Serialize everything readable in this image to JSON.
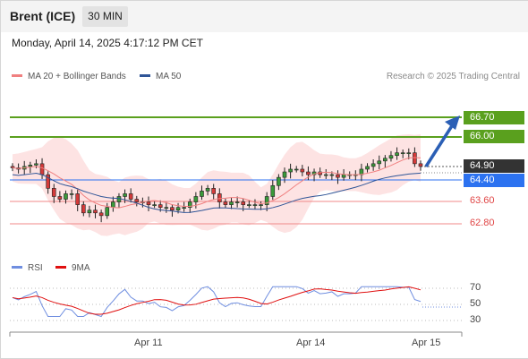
{
  "header": {
    "instrument": "Brent (ICE)",
    "timeframe": "30 MIN"
  },
  "datetime": "Monday, April 14, 2025 4:17:12 PM CET",
  "legend": {
    "items": [
      {
        "label": "MA 20 + Bollinger Bands",
        "color": "#f08080"
      },
      {
        "label": "MA 50",
        "color": "#2f5597"
      }
    ],
    "credit": "Research © 2025 Trading Central"
  },
  "levels": {
    "resistance_2": {
      "label": "66.70",
      "color": "#5aa01e"
    },
    "resistance_1": {
      "label": "66.00",
      "color": "#5aa01e"
    },
    "last_price": {
      "label": "64.90",
      "color": "#333333"
    },
    "pivot": {
      "label": "64.40",
      "color": "#2c72f0"
    },
    "support_1": {
      "label": "63.60",
      "color": "#e04545"
    },
    "support_2": {
      "label": "62.80",
      "color": "#e04545"
    }
  },
  "rsi_legend": {
    "items": [
      {
        "label": "RSI",
        "color": "#6f8ee0"
      },
      {
        "label": "9MA",
        "color": "#e01010"
      }
    ]
  },
  "rsi_levels": [
    "70",
    "50",
    "30"
  ],
  "x_axis": [
    "Apr 11",
    "Apr 14",
    "Apr 15"
  ],
  "chart_data": {
    "type": "candlestick",
    "price_series_close": [
      64.85,
      64.8,
      64.9,
      64.95,
      65.0,
      64.6,
      64.1,
      63.8,
      63.7,
      63.9,
      63.9,
      63.5,
      63.2,
      63.3,
      63.2,
      63.1,
      63.4,
      63.6,
      63.8,
      63.9,
      63.7,
      63.6,
      63.6,
      63.5,
      63.5,
      63.4,
      63.4,
      63.3,
      63.4,
      63.4,
      63.6,
      63.8,
      64.0,
      64.1,
      63.9,
      63.6,
      63.5,
      63.6,
      63.6,
      63.5,
      63.5,
      63.5,
      63.5,
      63.8,
      64.2,
      64.5,
      64.7,
      64.8,
      64.8,
      64.7,
      64.6,
      64.7,
      64.6,
      64.6,
      64.6,
      64.5,
      64.6,
      64.6,
      64.6,
      64.8,
      64.9,
      65.0,
      65.1,
      65.2,
      65.3,
      65.4,
      65.4,
      65.4,
      65.0,
      64.9
    ],
    "ma50_trend": "rising, ends near 64.40",
    "levels": [
      66.7,
      66.0,
      64.9,
      64.4,
      63.6,
      62.8
    ],
    "projection": "upward arrow from current price toward 66.70",
    "rsi": {
      "range": [
        30,
        70
      ],
      "last": 50
    }
  }
}
